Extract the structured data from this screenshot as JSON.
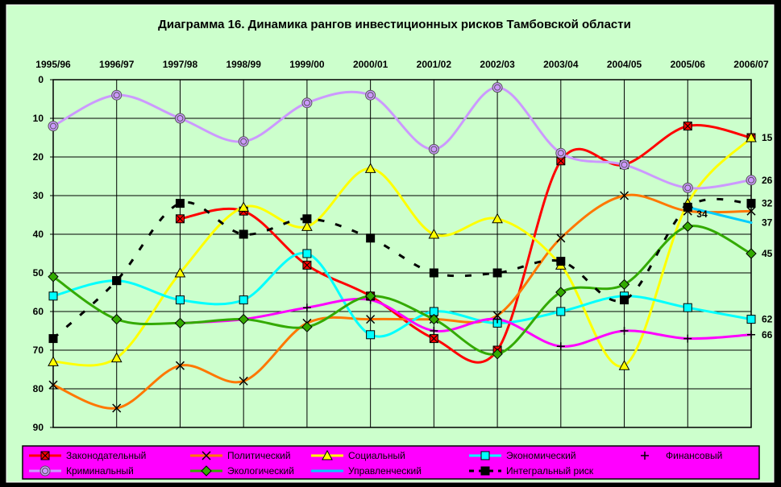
{
  "chart_data": {
    "type": "line",
    "title": "Диаграмма 16. Динамика рангов инвестиционных рисков Тамбовской области",
    "xlabel": "",
    "ylabel": "",
    "ylim": [
      0,
      90
    ],
    "y_reversed": true,
    "y_ticks": [
      "0",
      "10",
      "20",
      "30",
      "40",
      "50",
      "60",
      "70",
      "80",
      "90"
    ],
    "grid": true,
    "legend_position": "bottom",
    "colors": {
      "plot_bg": "#ccffcc",
      "outer_bg": "#ccffcc",
      "legend_bg": "#ff00ff",
      "frame": "#000000"
    },
    "categories": [
      "1995/96",
      "1996/97",
      "1997/98",
      "1998/99",
      "1999/00",
      "2000/01",
      "2001/02",
      "2002/03",
      "2003/04",
      "2004/05",
      "2005/06",
      "2006/07"
    ],
    "end_labels": [
      "15",
      "26",
      "32",
      "37",
      "45",
      "62",
      "66"
    ],
    "extra_labels": [
      {
        "text": "34",
        "x_index": 10,
        "value": 34
      }
    ],
    "series": [
      {
        "name": "Законодательный",
        "color": "#ff0000",
        "marker": "square-x",
        "marker_fill": "#ff0000",
        "dashed": false,
        "values": [
          null,
          null,
          36,
          34,
          48,
          56,
          67,
          70,
          21,
          22,
          12,
          15
        ]
      },
      {
        "name": "Политический",
        "color": "#ff7700",
        "marker": "x",
        "marker_fill": "#ff7700",
        "dashed": false,
        "values": [
          79,
          85,
          74,
          78,
          63,
          62,
          62,
          61,
          41,
          30,
          34,
          34
        ]
      },
      {
        "name": "Социальный",
        "color": "#ffff00",
        "marker": "triangle",
        "marker_fill": "#ffff00",
        "dashed": false,
        "values": [
          73,
          72,
          50,
          33,
          38,
          23,
          40,
          36,
          48,
          74,
          32,
          15
        ]
      },
      {
        "name": "Экономический",
        "color": "#00ffff",
        "marker": "square",
        "marker_fill": "#00ffff",
        "dashed": false,
        "values": [
          56,
          52,
          57,
          57,
          45,
          66,
          60,
          63,
          60,
          56,
          59,
          62
        ]
      },
      {
        "name": "Финансовый",
        "color": "#ff00ff",
        "marker": "plus",
        "marker_fill": "#ff00ff",
        "dashed": false,
        "values": [
          null,
          null,
          63,
          62,
          59,
          57,
          65,
          62,
          69,
          65,
          67,
          66
        ]
      },
      {
        "name": "Криминальный",
        "color": "#cc99ff",
        "marker": "circle",
        "marker_fill": "#cc99ff",
        "dashed": false,
        "values": [
          12,
          4,
          10,
          16,
          6,
          4,
          18,
          2,
          19,
          22,
          28,
          26
        ]
      },
      {
        "name": "Экологический",
        "color": "#33aa00",
        "marker": "diamond",
        "marker_fill": "#33aa00",
        "dashed": false,
        "values": [
          51,
          62,
          63,
          62,
          64,
          56,
          62,
          71,
          55,
          53,
          38,
          45
        ]
      },
      {
        "name": "Управленческий",
        "color": "#00ccff",
        "marker": "none",
        "marker_fill": "#00ccff",
        "dashed": false,
        "values": [
          null,
          null,
          null,
          null,
          null,
          null,
          null,
          null,
          null,
          null,
          33,
          37
        ]
      },
      {
        "name": "Интегральный риск",
        "color": "#000000",
        "marker": "square",
        "marker_fill": "#000000",
        "dashed": true,
        "values": [
          67,
          52,
          32,
          40,
          36,
          41,
          50,
          50,
          47,
          57,
          33,
          32
        ]
      }
    ]
  }
}
